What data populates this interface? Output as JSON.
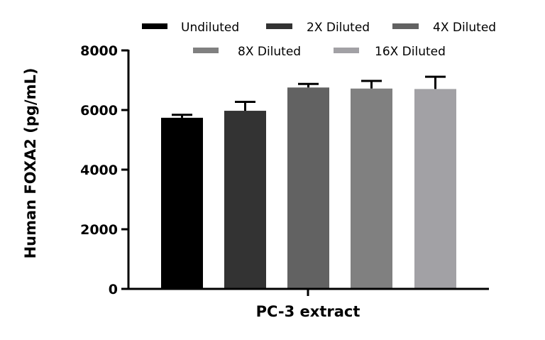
{
  "chart_data": {
    "type": "bar",
    "title": "",
    "xlabel": "PC-3 extract",
    "ylabel": "Human FOXA2 (pg/mL)",
    "categories": [
      "PC-3 extract"
    ],
    "ylim": [
      0,
      8000
    ],
    "yticks": [
      0,
      2000,
      4000,
      6000,
      8000
    ],
    "ytick_labels": [
      "0",
      "2000",
      "4000",
      "6000",
      "8000"
    ],
    "grid": false,
    "legend_position": "top",
    "error_bars": "upper only",
    "series": [
      {
        "name": "Undiluted",
        "values": [
          5740
        ],
        "error": [
          100
        ],
        "color": "#000000"
      },
      {
        "name": "2X Diluted",
        "values": [
          5975
        ],
        "error": [
          300
        ],
        "color": "#333333"
      },
      {
        "name": "4X Diluted",
        "values": [
          6755
        ],
        "error": [
          120
        ],
        "color": "#626262"
      },
      {
        "name": "8X Diluted",
        "values": [
          6720
        ],
        "error": [
          255
        ],
        "color": "#808080"
      },
      {
        "name": "16X Diluted",
        "values": [
          6705
        ],
        "error": [
          410
        ],
        "color": "#A2A1A5"
      }
    ]
  },
  "legend": {
    "items": [
      {
        "label": "Undiluted",
        "color": "#000000"
      },
      {
        "label": "2X Diluted",
        "color": "#333333"
      },
      {
        "label": "4X Diluted",
        "color": "#626262"
      },
      {
        "label": "8X Diluted",
        "color": "#808080"
      },
      {
        "label": "16X Diluted",
        "color": "#A2A1A5"
      }
    ]
  },
  "axes": {
    "y_title": "Human FOXA2 (pg/mL)",
    "x_title": "PC-3 extract",
    "y_ticks": [
      "0",
      "2000",
      "4000",
      "6000",
      "8000"
    ]
  }
}
